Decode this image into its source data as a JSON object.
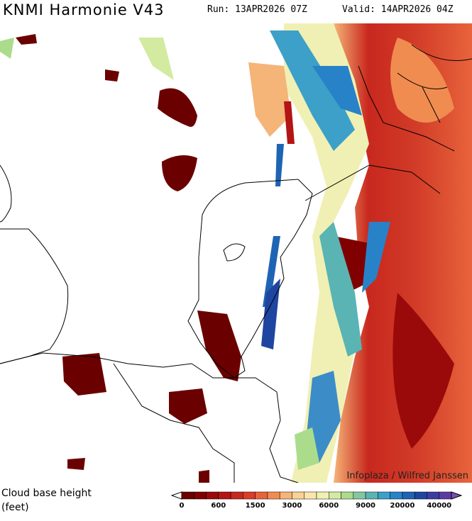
{
  "header": {
    "title": "KNMI Harmonie V43",
    "run": "Run: 13APR2026 07Z",
    "valid": "Valid: 14APR2026 04Z"
  },
  "credit": "Infoplaza / Wilfred Janssen",
  "legend": {
    "label": [
      "Cloud base height",
      "(feet)"
    ],
    "ticks": [
      0,
      600,
      1500,
      3000,
      6000,
      9000,
      20000,
      40000
    ],
    "colors": [
      "#6b0000",
      "#800000",
      "#9b0a0a",
      "#b41414",
      "#c8281e",
      "#dc3c28",
      "#e8643c",
      "#f08c50",
      "#f5b478",
      "#fad296",
      "#fae6aa",
      "#f0f0b4",
      "#d2eba0",
      "#aadc8c",
      "#82c8a0",
      "#5ab4b4",
      "#3ca0c8",
      "#2882c8",
      "#1e64b4",
      "#1e46a0",
      "#3c3ca0",
      "#5a3ca0",
      "#7850b4"
    ]
  }
}
